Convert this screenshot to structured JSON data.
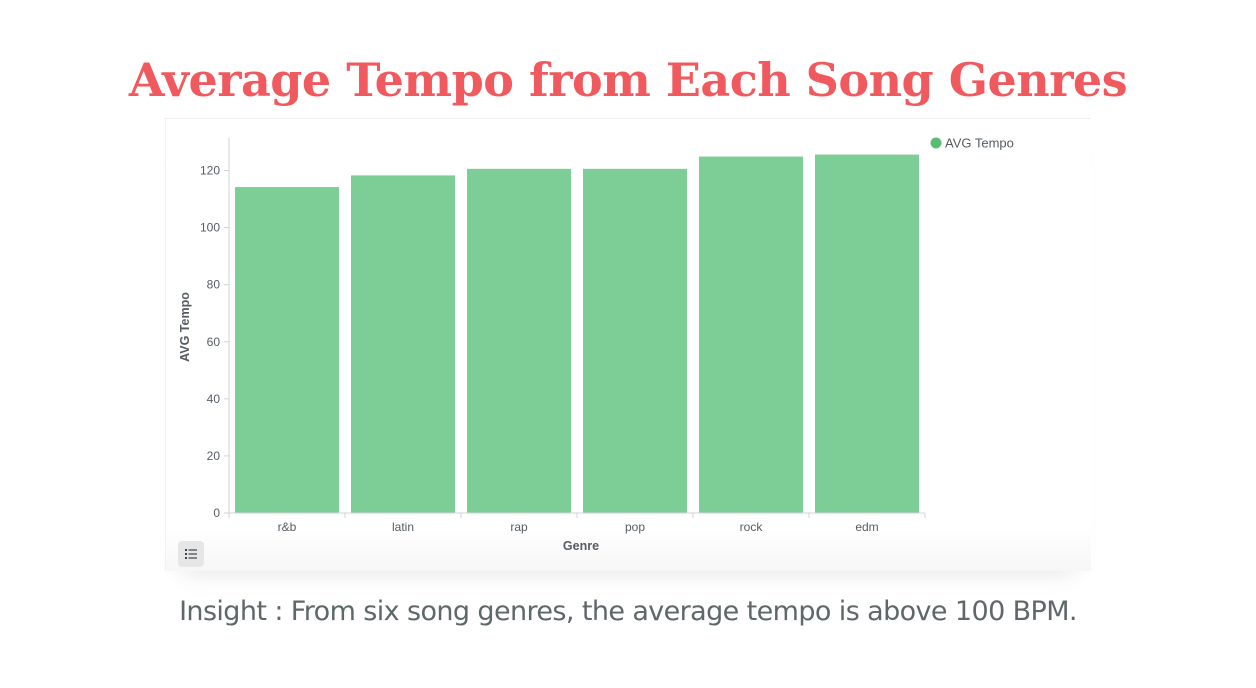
{
  "title": "Average Tempo from Each Song Genres",
  "insight": "Insight : From six song genres, the average tempo is above 100 BPM.",
  "colors": {
    "title": "#f05a5f",
    "bar": "#7dcd96",
    "legend_marker": "#5bbd74",
    "text": "#5e6769"
  },
  "icons": {
    "table_button": "list-icon"
  },
  "chart_data": {
    "type": "bar",
    "categories": [
      "r&b",
      "latin",
      "rap",
      "pop",
      "rock",
      "edm"
    ],
    "series": [
      {
        "name": "AVG Tempo",
        "values": [
          114.2,
          118.3,
          120.6,
          120.6,
          124.9,
          125.6
        ]
      }
    ],
    "xlabel": "Genre",
    "ylabel": "AVG Tempo",
    "ylim": [
      0,
      130
    ],
    "yticks": [
      0,
      20,
      40,
      60,
      80,
      100,
      120
    ],
    "grid": false,
    "legend_position": "top-right"
  }
}
